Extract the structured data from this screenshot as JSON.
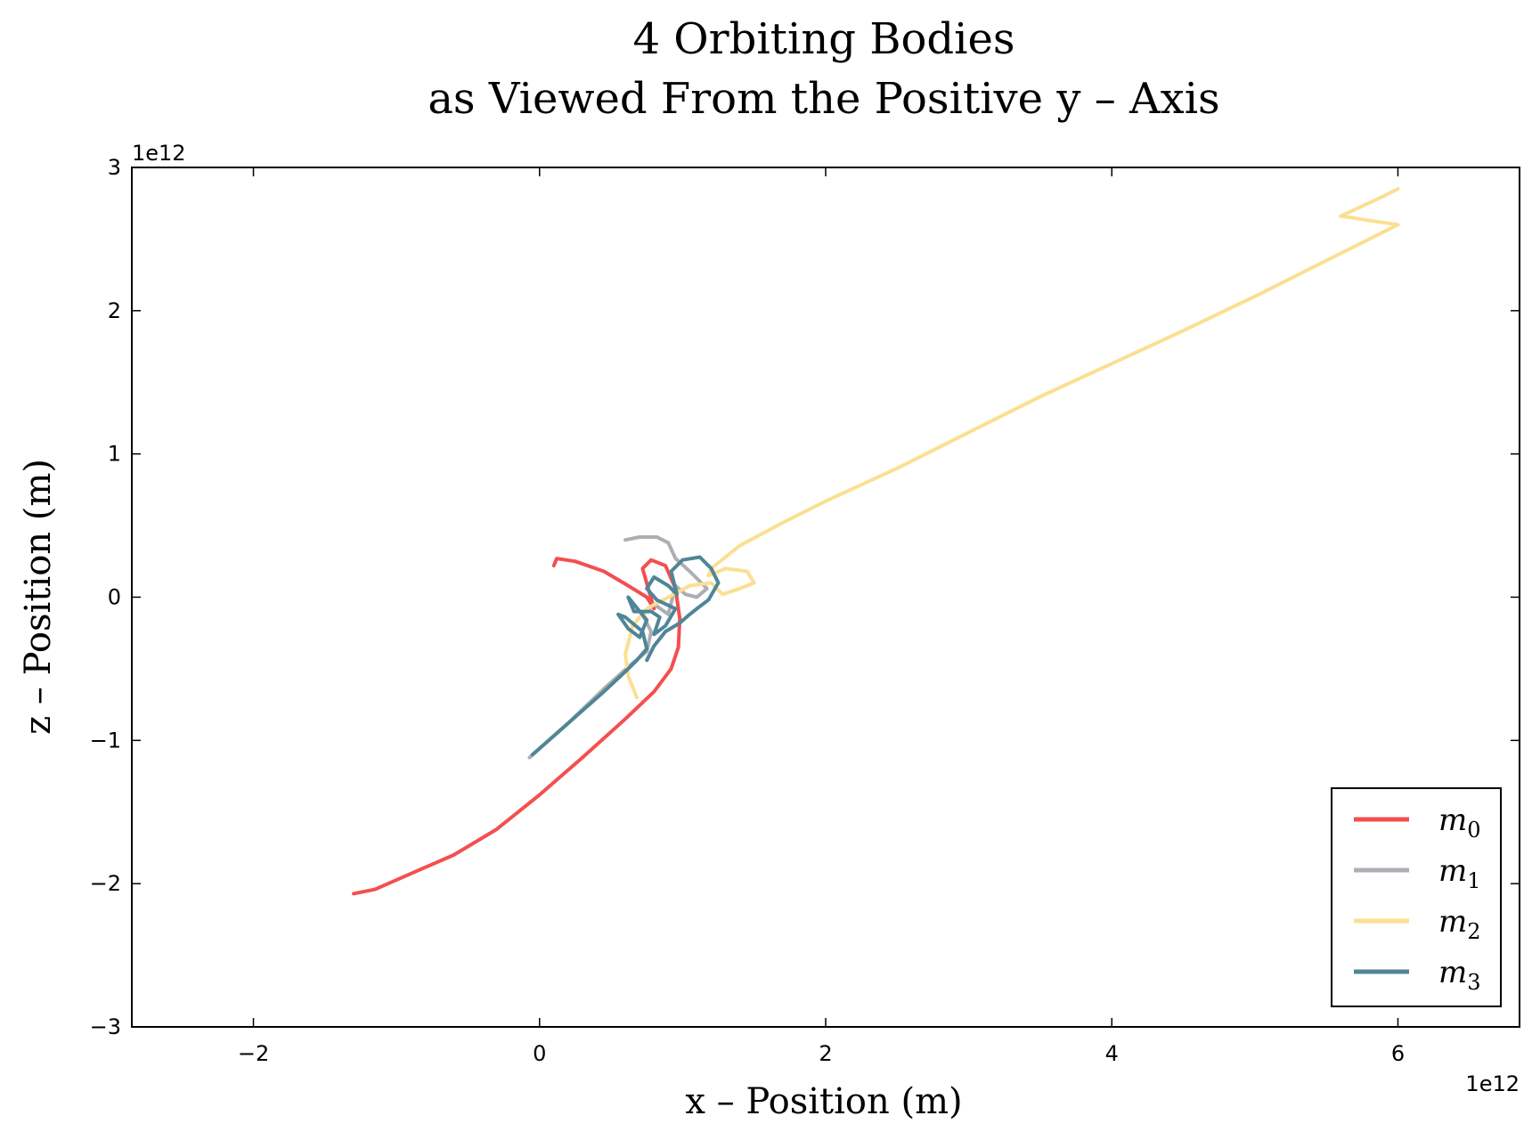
{
  "chart_data": {
    "type": "line",
    "title": "4 Orbiting Bodies",
    "subtitle": "as Viewed From the Positive y – Axis",
    "xlabel": "x – Position (m)",
    "ylabel": "z – Position (m)",
    "x_scale_label": "1e12",
    "y_scale_label": "1e12",
    "xlim": [
      -2.85,
      6.85
    ],
    "ylim": [
      -3,
      3
    ],
    "x_ticks": [
      -2,
      0,
      2,
      4,
      6
    ],
    "y_ticks": [
      -3,
      -2,
      -1,
      0,
      1,
      2,
      3
    ],
    "x_tick_labels": [
      "−2",
      "0",
      "2",
      "4",
      "6"
    ],
    "y_tick_labels": [
      "−3",
      "−2",
      "−1",
      "0",
      "1",
      "2",
      "3"
    ],
    "grid": false,
    "legend_position": "lower-right",
    "series": [
      {
        "name": "m",
        "subscript": "0",
        "color": "#f44f4f",
        "points": [
          [
            0.1,
            0.22
          ],
          [
            0.12,
            0.27
          ],
          [
            0.25,
            0.25
          ],
          [
            0.45,
            0.18
          ],
          [
            0.62,
            0.08
          ],
          [
            0.75,
            0.0
          ],
          [
            0.8,
            -0.08
          ],
          [
            0.72,
            0.2
          ],
          [
            0.78,
            0.26
          ],
          [
            0.88,
            0.22
          ],
          [
            0.95,
            0.06
          ],
          [
            0.98,
            -0.15
          ],
          [
            0.97,
            -0.35
          ],
          [
            0.92,
            -0.5
          ],
          [
            0.8,
            -0.66
          ],
          [
            0.6,
            -0.85
          ],
          [
            0.3,
            -1.12
          ],
          [
            0.0,
            -1.38
          ],
          [
            -0.3,
            -1.62
          ],
          [
            -0.6,
            -1.8
          ],
          [
            -0.9,
            -1.93
          ],
          [
            -1.15,
            -2.04
          ],
          [
            -1.3,
            -2.07
          ]
        ]
      },
      {
        "name": "m",
        "subscript": "1",
        "color": "#aeaeb4",
        "points": [
          [
            -0.07,
            -1.12
          ],
          [
            0.2,
            -0.88
          ],
          [
            0.45,
            -0.64
          ],
          [
            0.65,
            -0.46
          ],
          [
            0.75,
            -0.38
          ],
          [
            0.78,
            -0.24
          ],
          [
            0.72,
            -0.12
          ],
          [
            0.8,
            -0.05
          ],
          [
            0.9,
            -0.12
          ],
          [
            0.95,
            0.08
          ],
          [
            1.02,
            0.02
          ],
          [
            1.1,
            0.0
          ],
          [
            1.17,
            0.06
          ],
          [
            1.05,
            0.18
          ],
          [
            0.95,
            0.27
          ],
          [
            0.9,
            0.38
          ],
          [
            0.82,
            0.42
          ],
          [
            0.7,
            0.42
          ],
          [
            0.6,
            0.4
          ]
        ]
      },
      {
        "name": "m",
        "subscript": "2",
        "color": "#fbdf92",
        "points": [
          [
            0.68,
            -0.7
          ],
          [
            0.62,
            -0.55
          ],
          [
            0.6,
            -0.4
          ],
          [
            0.65,
            -0.2
          ],
          [
            0.75,
            -0.08
          ],
          [
            0.9,
            0.0
          ],
          [
            1.05,
            0.08
          ],
          [
            1.2,
            0.1
          ],
          [
            1.28,
            0.02
          ],
          [
            1.4,
            0.06
          ],
          [
            1.5,
            0.1
          ],
          [
            1.45,
            0.18
          ],
          [
            1.3,
            0.2
          ],
          [
            1.18,
            0.15
          ],
          [
            1.2,
            0.2
          ],
          [
            1.4,
            0.36
          ],
          [
            1.7,
            0.52
          ],
          [
            2.0,
            0.67
          ],
          [
            2.5,
            0.9
          ],
          [
            3.0,
            1.15
          ],
          [
            3.5,
            1.4
          ],
          [
            4.0,
            1.63
          ],
          [
            4.5,
            1.86
          ],
          [
            5.0,
            2.1
          ],
          [
            5.5,
            2.35
          ],
          [
            6.0,
            2.6
          ],
          [
            5.6,
            2.66
          ],
          [
            5.9,
            2.8
          ],
          [
            6.0,
            2.85
          ]
        ]
      },
      {
        "name": "m",
        "subscript": "3",
        "color": "#4f8697",
        "points": [
          [
            -0.05,
            -1.1
          ],
          [
            0.2,
            -0.88
          ],
          [
            0.45,
            -0.66
          ],
          [
            0.6,
            -0.52
          ],
          [
            0.68,
            -0.44
          ],
          [
            0.75,
            -0.36
          ],
          [
            0.72,
            -0.24
          ],
          [
            0.6,
            -0.14
          ],
          [
            0.55,
            -0.12
          ],
          [
            0.62,
            -0.22
          ],
          [
            0.7,
            -0.28
          ],
          [
            0.75,
            -0.16
          ],
          [
            0.62,
            0.0
          ],
          [
            0.66,
            -0.1
          ],
          [
            0.78,
            -0.1
          ],
          [
            0.84,
            -0.14
          ],
          [
            0.8,
            -0.26
          ],
          [
            0.88,
            -0.2
          ],
          [
            0.95,
            -0.08
          ],
          [
            0.82,
            -0.02
          ],
          [
            0.75,
            0.06
          ],
          [
            0.8,
            0.14
          ],
          [
            0.9,
            0.08
          ],
          [
            0.96,
            0.02
          ],
          [
            0.92,
            0.18
          ],
          [
            1.0,
            0.26
          ],
          [
            1.12,
            0.28
          ],
          [
            1.2,
            0.2
          ],
          [
            1.25,
            0.1
          ],
          [
            1.18,
            -0.02
          ],
          [
            1.1,
            -0.08
          ],
          [
            1.05,
            -0.12
          ],
          [
            0.98,
            -0.18
          ],
          [
            0.88,
            -0.24
          ],
          [
            0.8,
            -0.34
          ],
          [
            0.75,
            -0.44
          ]
        ]
      }
    ]
  }
}
